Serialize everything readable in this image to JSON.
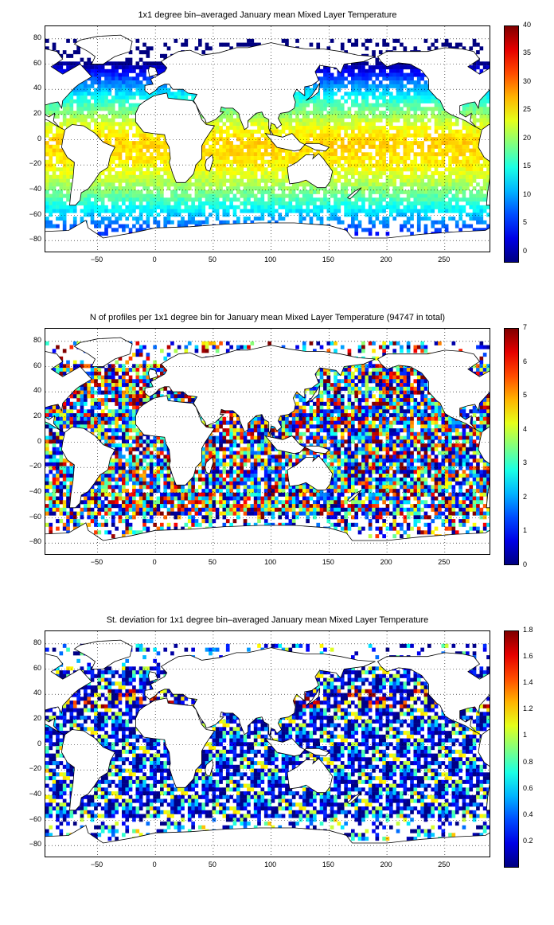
{
  "panels": [
    {
      "title": "1x1 degree bin–averaged January mean Mixed Layer Temperature",
      "colorbar_ticks": [
        "40",
        "35",
        "30",
        "25",
        "20",
        "15",
        "10",
        "5",
        "0"
      ],
      "colorbar_range": [
        -2,
        40
      ],
      "variable": "temperature"
    },
    {
      "title": "N of profiles per 1x1 degree bin for January mean Mixed Layer Temperature  (94747 in total)",
      "colorbar_ticks": [
        "7",
        "6",
        "5",
        "4",
        "3",
        "2",
        "1",
        "0"
      ],
      "colorbar_range": [
        0,
        7
      ],
      "variable": "count"
    },
    {
      "title": "St. deviation for 1x1 degree bin–averaged January mean Mixed Layer Temperature",
      "colorbar_ticks": [
        "1.8",
        "1.6",
        "1.4",
        "1.2",
        "1",
        "0.8",
        "0.6",
        "0.4",
        "0.2"
      ],
      "colorbar_range": [
        0,
        1.8
      ],
      "variable": "stdev"
    }
  ],
  "axes": {
    "y_ticks": [
      "80",
      "60",
      "40",
      "20",
      "0",
      "−20",
      "−40",
      "−60",
      "−80"
    ],
    "x_ticks": [
      "−50",
      "0",
      "50",
      "100",
      "150",
      "200",
      "250"
    ],
    "x_range": [
      -95,
      290
    ],
    "y_range": [
      -90,
      90
    ]
  },
  "colormap": "jet",
  "chart_data": [
    {
      "type": "heatmap",
      "title": "1x1 degree bin–averaged January mean Mixed Layer Temperature",
      "xlim": [
        -95,
        290
      ],
      "ylim": [
        -90,
        90
      ],
      "colorbar": [
        -2,
        40
      ]
    },
    {
      "type": "heatmap",
      "title": "N of profiles per 1x1 degree bin for January mean Mixed Layer Temperature  (94747 in total)",
      "xlim": [
        -95,
        290
      ],
      "ylim": [
        -90,
        90
      ],
      "colorbar": [
        0,
        7
      ]
    },
    {
      "type": "heatmap",
      "title": "St. deviation for 1x1 degree bin–averaged January mean Mixed Layer Temperature",
      "xlim": [
        -95,
        290
      ],
      "ylim": [
        -90,
        90
      ],
      "colorbar": [
        0,
        1.8
      ]
    }
  ]
}
